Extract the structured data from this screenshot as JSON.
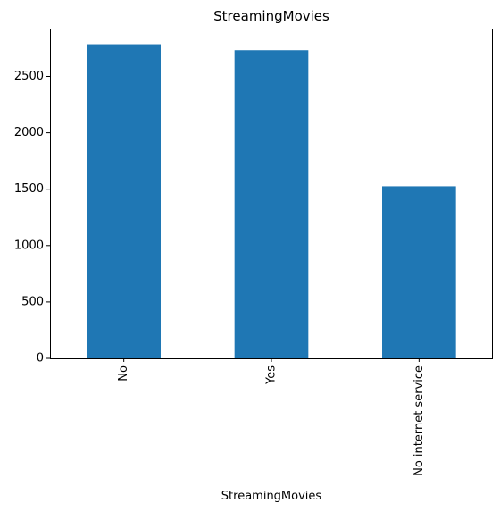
{
  "chart_data": {
    "type": "bar",
    "title": "StreamingMovies",
    "xlabel": "StreamingMovies",
    "ylabel": "",
    "categories": [
      "No",
      "Yes",
      "No internet service"
    ],
    "values": [
      2785,
      2732,
      1526
    ],
    "yticks": [
      0,
      500,
      1000,
      1500,
      2000,
      2500
    ],
    "ylim": [
      0,
      2924
    ],
    "bar_color": "#1f77b4",
    "grid": false,
    "legend": "none",
    "xtick_rotation": "vertical"
  }
}
